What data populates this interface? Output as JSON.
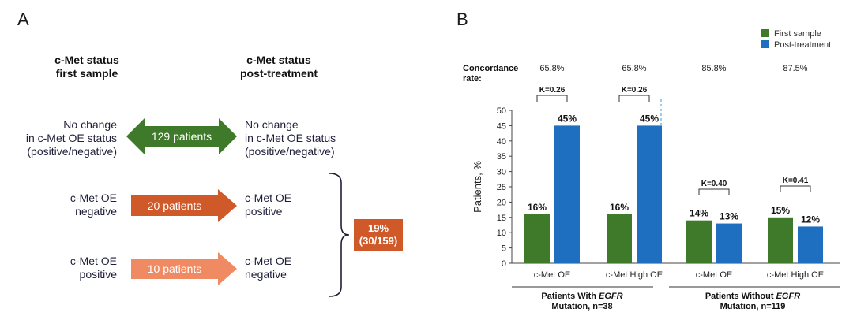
{
  "panel_a": {
    "letter": "A",
    "header_first": [
      "c-Met status",
      "first sample"
    ],
    "header_post": [
      "c-Met status",
      "post-treatment"
    ],
    "rows": [
      {
        "left": [
          "No change",
          "in c-Met OE status",
          "(positive/negative)"
        ],
        "arrow": "129 patients",
        "right": [
          "No change",
          "in c-Met OE status",
          "(positive/negative)"
        ],
        "color": "#3e7a2a"
      },
      {
        "left": [
          "c-Met OE",
          "negative"
        ],
        "arrow": "20 patients",
        "right": [
          "c-Met OE",
          "positive"
        ],
        "color": "#d0592a"
      },
      {
        "left": [
          "c-Met OE",
          "positive"
        ],
        "arrow": "10 patients",
        "right": [
          "c-Met OE",
          "negative"
        ],
        "color": "#f08a62"
      }
    ],
    "summary": [
      "19%",
      "(30/159)"
    ],
    "summary_color": "#d0592a"
  },
  "panel_b": {
    "letter": "B",
    "concordance_label": [
      "Concordance",
      "rate:"
    ],
    "concordance": [
      "65.8%",
      "65.8%",
      "85.8%",
      "87.5%"
    ],
    "kappa": [
      "K=0.26",
      "K=0.26",
      "K=0.40",
      "K=0.41"
    ],
    "group_labels": [
      {
        "line1_prefix": "Patients With ",
        "line1_italic": "EGFR",
        "line2": "Mutation, n=38"
      },
      {
        "line1_prefix": "Patients Without ",
        "line1_italic": "EGFR",
        "line2": "Mutation, n=119"
      }
    ]
  },
  "chart_data": {
    "type": "bar",
    "categories": [
      "c-Met OE",
      "c-Met High OE",
      "c-Met OE",
      "c-Met High OE"
    ],
    "series": [
      {
        "name": "First sample",
        "values": [
          16,
          16,
          14,
          15
        ],
        "labels": [
          "16%",
          "16%",
          "14%",
          "15%"
        ],
        "color": "#3e7a2a"
      },
      {
        "name": "Post-treatment",
        "values": [
          45,
          45,
          13,
          12
        ],
        "labels": [
          "45%",
          "45%",
          "13%",
          "12%"
        ],
        "color": "#1f6fc0"
      }
    ],
    "ylabel": "Patients, %",
    "ylim": [
      0,
      50
    ],
    "yticks": [
      "0",
      "5",
      "10",
      "15",
      "20",
      "25",
      "30",
      "35",
      "40",
      "45",
      "50"
    ],
    "legend_placement": "top-right",
    "grid": false
  }
}
